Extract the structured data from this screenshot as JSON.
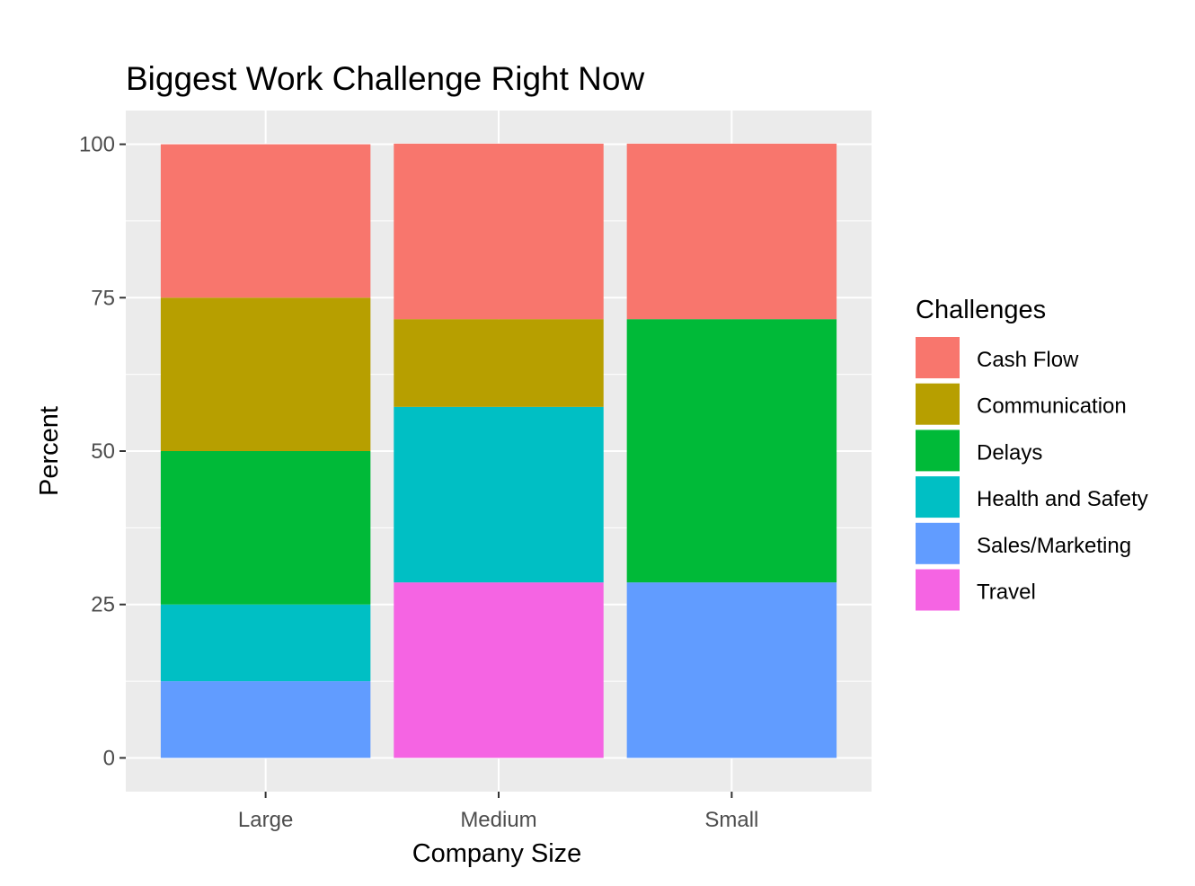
{
  "chart_data": {
    "type": "bar",
    "stacked": true,
    "title": "Biggest Work Challenge Right Now",
    "xlabel": "Company Size",
    "ylabel": "Percent",
    "categories": [
      "Large",
      "Medium",
      "Small"
    ],
    "ylim": [
      -5.5,
      105.5
    ],
    "yticks": [
      0,
      25,
      50,
      75,
      100
    ],
    "grid": true,
    "legend": {
      "title": "Challenges",
      "position": "right"
    },
    "series": [
      {
        "name": "Cash Flow",
        "color": "#F8766D",
        "values": [
          25,
          28.6,
          28.6
        ]
      },
      {
        "name": "Communication",
        "color": "#B79F00",
        "values": [
          25,
          14.3,
          0
        ]
      },
      {
        "name": "Delays",
        "color": "#00BA38",
        "values": [
          25,
          0,
          42.9
        ]
      },
      {
        "name": "Health and Safety",
        "color": "#00BFC4",
        "values": [
          12.5,
          28.6,
          0
        ]
      },
      {
        "name": "Sales/Marketing",
        "color": "#619CFF",
        "values": [
          12.5,
          0,
          28.6
        ]
      },
      {
        "name": "Travel",
        "color": "#F564E3",
        "values": [
          0,
          28.6,
          0
        ]
      }
    ]
  }
}
